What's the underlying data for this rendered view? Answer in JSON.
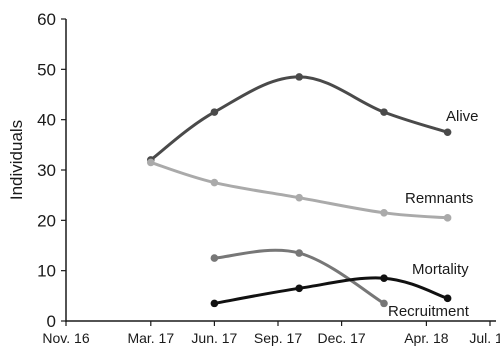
{
  "chart_data": {
    "type": "line",
    "ylabel": "Individuals",
    "ylim": [
      0,
      60
    ],
    "yticks": [
      0,
      10,
      20,
      30,
      40,
      50,
      60
    ],
    "x_axis": {
      "unit": "month",
      "range": [
        "2016-11",
        "2018-07"
      ],
      "ticks": [
        {
          "date": "2016-11",
          "label": "Nov. 16"
        },
        {
          "date": "2017-03",
          "label": "Mar. 17"
        },
        {
          "date": "2017-06",
          "label": "Jun. 17"
        },
        {
          "date": "2017-09",
          "label": "Sep. 17"
        },
        {
          "date": "2017-12",
          "label": "Dec. 17"
        },
        {
          "date": "2018-04",
          "label": "Apr. 18"
        },
        {
          "date": "2018-07",
          "label": "Jul. 18"
        }
      ]
    },
    "grid": false,
    "legend": "labels at line ends",
    "series": [
      {
        "name": "Alive",
        "color": "#4a4a4a",
        "points": [
          {
            "x": "2017-03",
            "y": 32
          },
          {
            "x": "2017-06",
            "y": 41.5
          },
          {
            "x": "2017-10",
            "y": 48.5
          },
          {
            "x": "2018-02",
            "y": 41.5
          },
          {
            "x": "2018-05",
            "y": 37.5
          }
        ]
      },
      {
        "name": "Remnants",
        "color": "#aaaaaa",
        "points": [
          {
            "x": "2017-03",
            "y": 31.5
          },
          {
            "x": "2017-06",
            "y": 27.5
          },
          {
            "x": "2017-10",
            "y": 24.5
          },
          {
            "x": "2018-02",
            "y": 21.5
          },
          {
            "x": "2018-05",
            "y": 20.5
          }
        ]
      },
      {
        "name": "Mortality",
        "color": "#777777",
        "points": [
          {
            "x": "2017-06",
            "y": 12.5
          },
          {
            "x": "2017-10",
            "y": 13.5
          },
          {
            "x": "2018-02",
            "y": 3.5
          }
        ]
      },
      {
        "name": "Recruitment",
        "color": "#111111",
        "points": [
          {
            "x": "2017-06",
            "y": 3.5
          },
          {
            "x": "2017-10",
            "y": 6.5
          },
          {
            "x": "2018-02",
            "y": 8.5
          },
          {
            "x": "2018-05",
            "y": 4.5
          }
        ]
      }
    ]
  }
}
